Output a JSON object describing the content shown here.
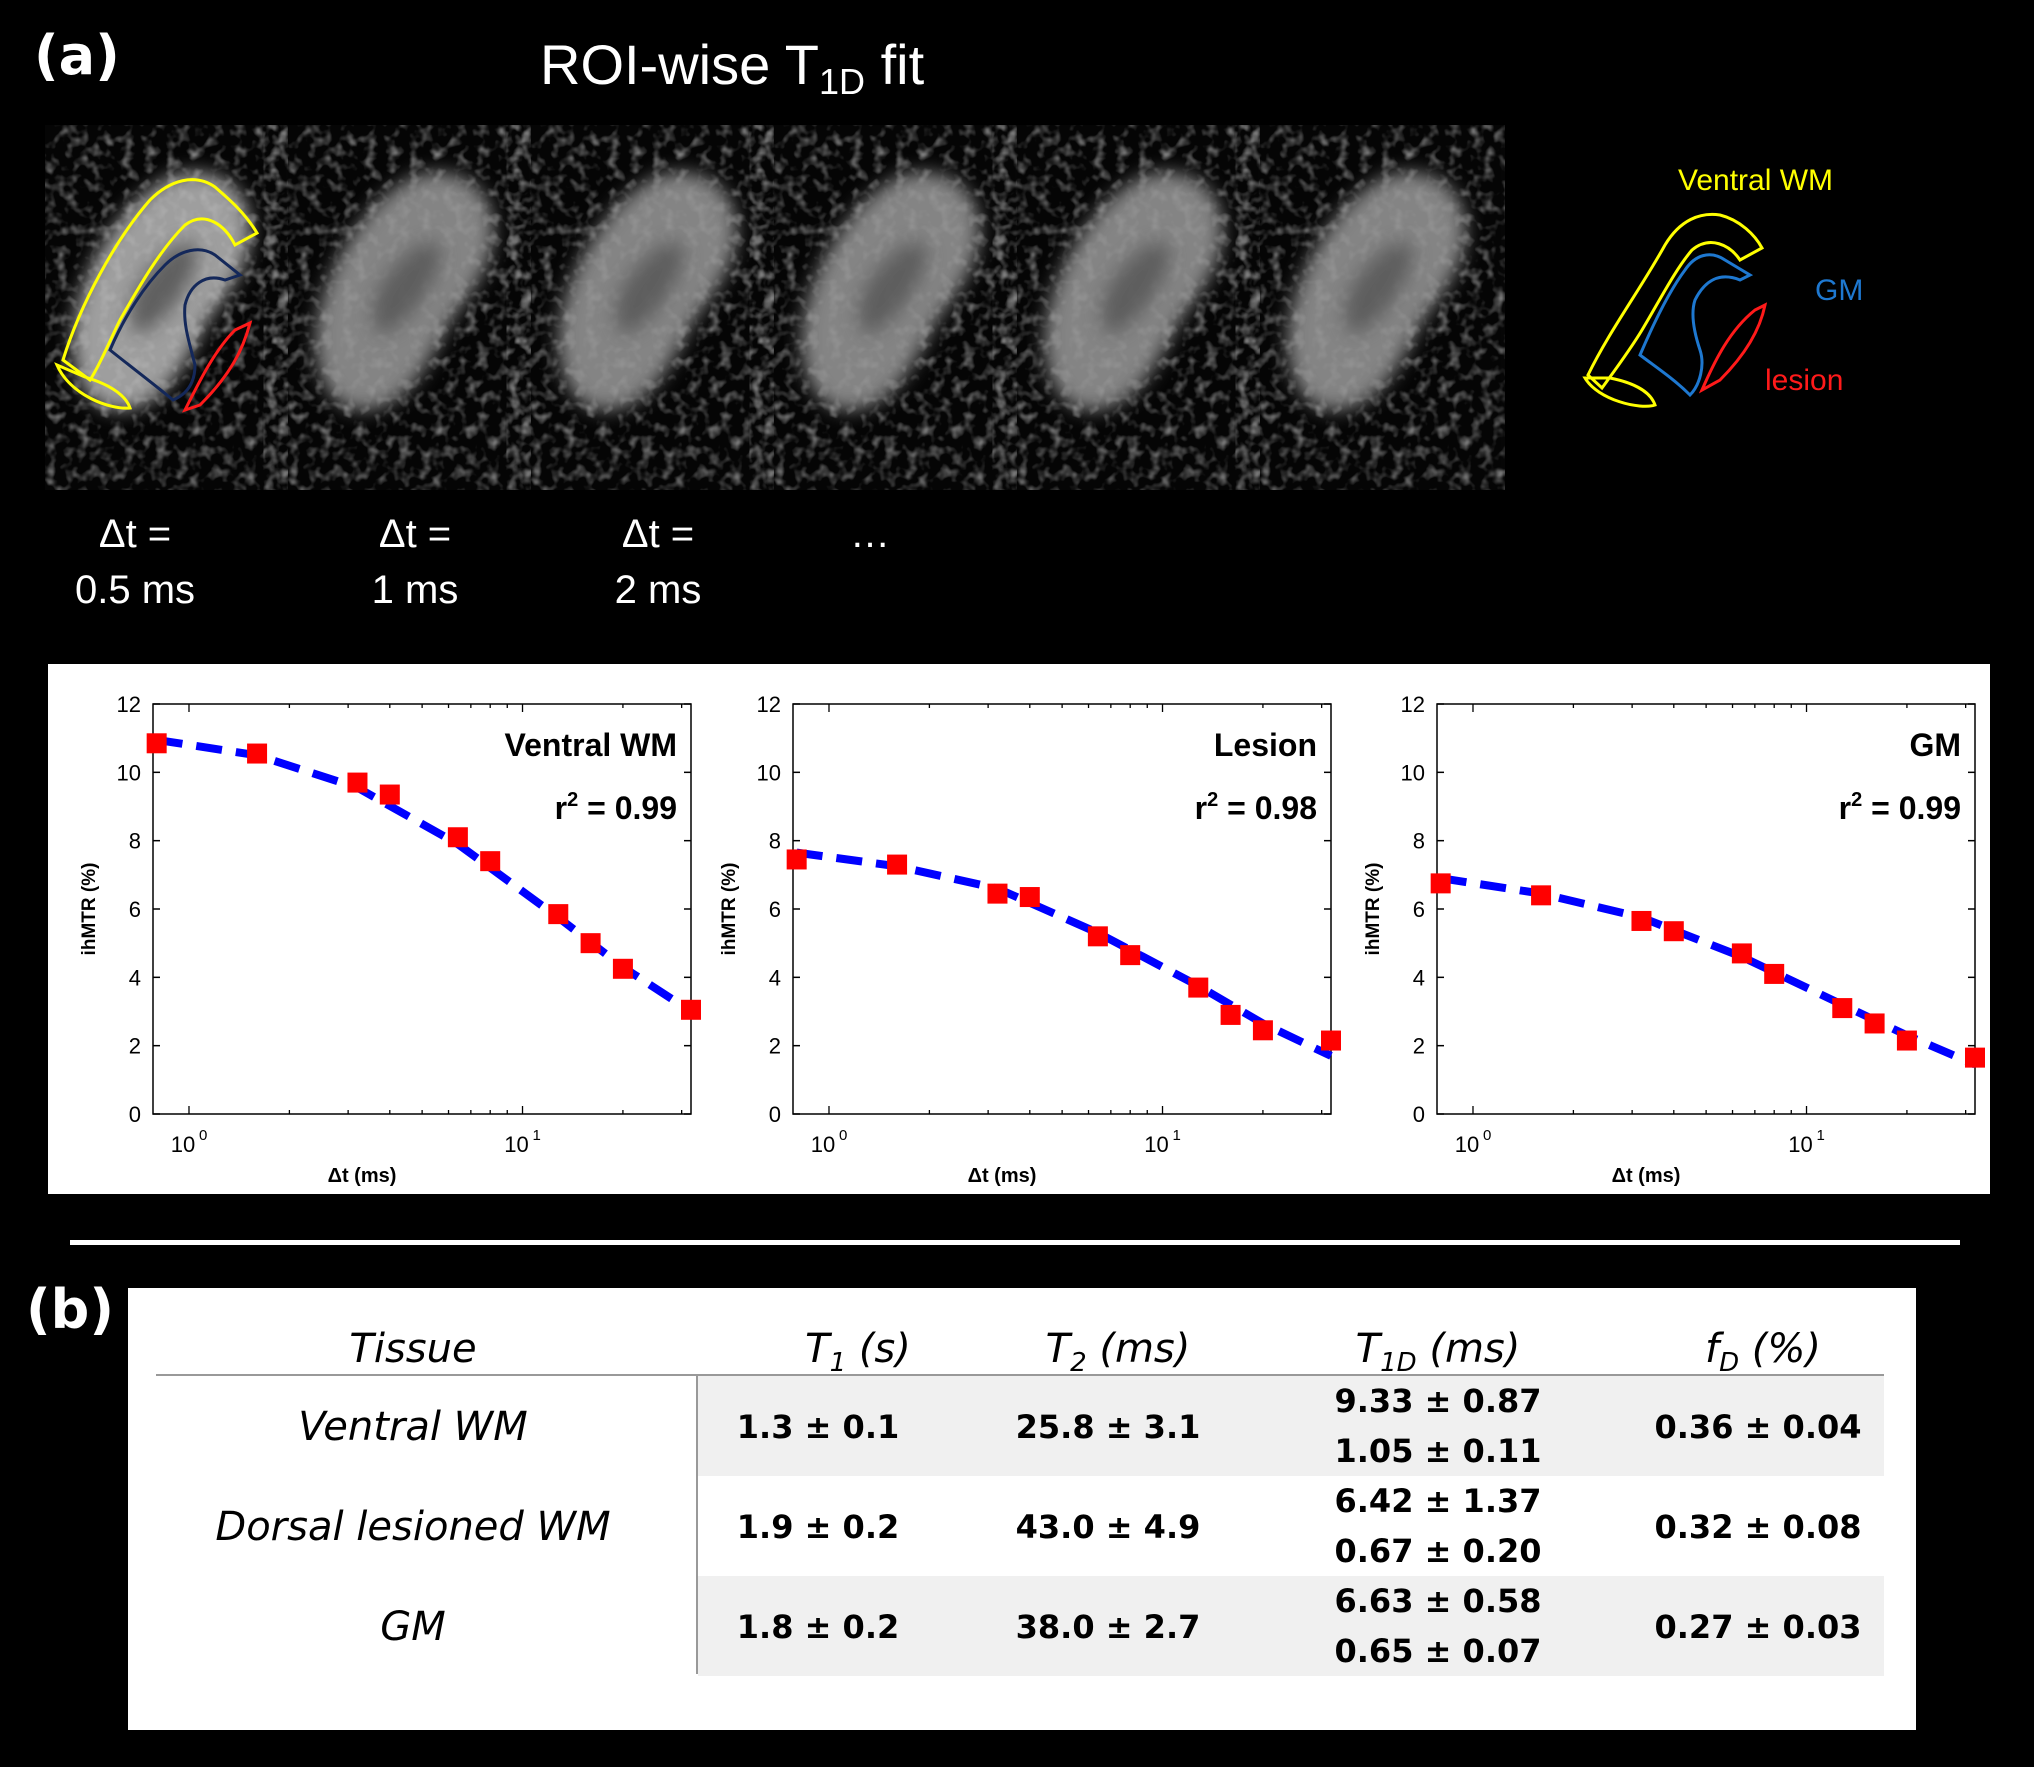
{
  "panel_a_label": "(a)",
  "panel_b_label": "(b)",
  "title": {
    "main": "ROI-wise T",
    "sub": "1D",
    "tail": " fit"
  },
  "delta_labels": [
    {
      "line1": "Δt =",
      "line2": "0.5 ms"
    },
    {
      "line1": "Δt =",
      "line2": "1 ms"
    },
    {
      "line1": "Δt =",
      "line2": "2 ms"
    },
    {
      "line1": "…",
      "line2": ""
    }
  ],
  "roi_legend": {
    "ventral": "Ventral  WM",
    "gm": "GM",
    "lesion": "lesion",
    "colors": {
      "ventral": "#ffff00",
      "gm": "#1e78d0",
      "lesion": "#ff1a1a",
      "gm_outline_on_image": "#14285a"
    }
  },
  "chart_data": [
    {
      "type": "scatter",
      "title": "Ventral WM",
      "r2_text": "r",
      "r2_sup": "2",
      "r2_value": " = 0.99",
      "xlabel": "Δt (ms)",
      "ylabel": "ihMTR (%)",
      "xscale": "log",
      "xlim": [
        0.78,
        32
      ],
      "ylim": [
        0,
        12
      ],
      "yticks": [
        "0",
        "2",
        "4",
        "6",
        "8",
        "10",
        "12"
      ],
      "xticks": [
        {
          "base": "10",
          "exp": "0",
          "value": 1
        },
        {
          "base": "10",
          "exp": "1",
          "value": 10
        }
      ],
      "x": [
        0.8,
        1.6,
        3.2,
        4.0,
        6.4,
        8.0,
        12.8,
        16.0,
        20.0,
        32.0
      ],
      "y": [
        10.85,
        10.55,
        9.7,
        9.35,
        8.1,
        7.4,
        5.85,
        5.0,
        4.25,
        3.05
      ],
      "fit": [
        [
          0.8,
          10.95
        ],
        [
          1.6,
          10.5
        ],
        [
          3.2,
          9.55
        ],
        [
          6.4,
          7.9
        ],
        [
          12.8,
          5.75
        ],
        [
          20.0,
          4.3
        ],
        [
          32.0,
          3.0
        ]
      ],
      "colors": {
        "points": "#ff0000",
        "fit": "#0000ff"
      }
    },
    {
      "type": "scatter",
      "title": "Lesion",
      "r2_text": "r",
      "r2_sup": "2",
      "r2_value": " = 0.98",
      "xlabel": "Δt (ms)",
      "ylabel": "ihMTR (%)",
      "xscale": "log",
      "xlim": [
        0.78,
        32
      ],
      "ylim": [
        0,
        12
      ],
      "yticks": [
        "0",
        "2",
        "4",
        "6",
        "8",
        "10",
        "12"
      ],
      "xticks": [
        {
          "base": "10",
          "exp": "0",
          "value": 1
        },
        {
          "base": "10",
          "exp": "1",
          "value": 10
        }
      ],
      "x": [
        0.8,
        1.6,
        3.2,
        4.0,
        6.4,
        8.0,
        12.8,
        16.0,
        20.0,
        32.0
      ],
      "y": [
        7.45,
        7.3,
        6.45,
        6.35,
        5.2,
        4.65,
        3.7,
        2.9,
        2.45,
        2.15
      ],
      "fit": [
        [
          0.8,
          7.65
        ],
        [
          1.6,
          7.25
        ],
        [
          3.2,
          6.6
        ],
        [
          6.4,
          5.3
        ],
        [
          12.8,
          3.75
        ],
        [
          20.0,
          2.65
        ],
        [
          32.0,
          1.7
        ]
      ],
      "colors": {
        "points": "#ff0000",
        "fit": "#0000ff"
      }
    },
    {
      "type": "scatter",
      "title": "GM",
      "r2_text": "r",
      "r2_sup": "2",
      "r2_value": " = 0.99",
      "xlabel": "Δt (ms)",
      "ylabel": "ihMTR (%)",
      "xscale": "log",
      "xlim": [
        0.78,
        32
      ],
      "ylim": [
        0,
        12
      ],
      "yticks": [
        "0",
        "2",
        "4",
        "6",
        "8",
        "10",
        "12"
      ],
      "xticks": [
        {
          "base": "10",
          "exp": "0",
          "value": 1
        },
        {
          "base": "10",
          "exp": "1",
          "value": 10
        }
      ],
      "x": [
        0.8,
        1.6,
        3.2,
        4.0,
        6.4,
        8.0,
        12.8,
        16.0,
        20.0,
        32.0
      ],
      "y": [
        6.75,
        6.4,
        5.65,
        5.35,
        4.7,
        4.1,
        3.1,
        2.65,
        2.15,
        1.65
      ],
      "fit": [
        [
          0.8,
          6.9
        ],
        [
          1.6,
          6.45
        ],
        [
          3.2,
          5.75
        ],
        [
          6.4,
          4.6
        ],
        [
          12.8,
          3.2
        ],
        [
          20.0,
          2.3
        ],
        [
          32.0,
          1.45
        ]
      ],
      "colors": {
        "points": "#ff0000",
        "fit": "#0000ff"
      }
    }
  ],
  "table": {
    "headers": [
      {
        "text": "Tissue",
        "sub": "",
        "tail": ""
      },
      {
        "text": "T",
        "sub": "1",
        "tail": " (s)"
      },
      {
        "text": "T",
        "sub": "2",
        "tail": " (ms)"
      },
      {
        "text": "T",
        "sub": "1D",
        "tail": " (ms)"
      },
      {
        "text": "f",
        "sub": "D",
        "tail": " (%)"
      }
    ],
    "rows": [
      {
        "tissue": "Ventral WM",
        "t1": "1.3 ± 0.1",
        "t2": "25.8 ± 3.1",
        "t1d_a": "9.33 ± 0.87",
        "t1d_b": "1.05 ± 0.11",
        "fd": "0.36 ± 0.04"
      },
      {
        "tissue": "Dorsal lesioned WM",
        "t1": "1.9 ± 0.2",
        "t2": "43.0 ± 4.9",
        "t1d_a": "6.42 ± 1.37",
        "t1d_b": "0.67 ± 0.20",
        "fd": "0.32 ± 0.08"
      },
      {
        "tissue": "GM",
        "t1": "1.8 ± 0.2",
        "t2": "38.0 ± 2.7",
        "t1d_a": "6.63 ± 0.58",
        "t1d_b": "0.65 ± 0.07",
        "fd": "0.27 ± 0.03"
      }
    ]
  }
}
